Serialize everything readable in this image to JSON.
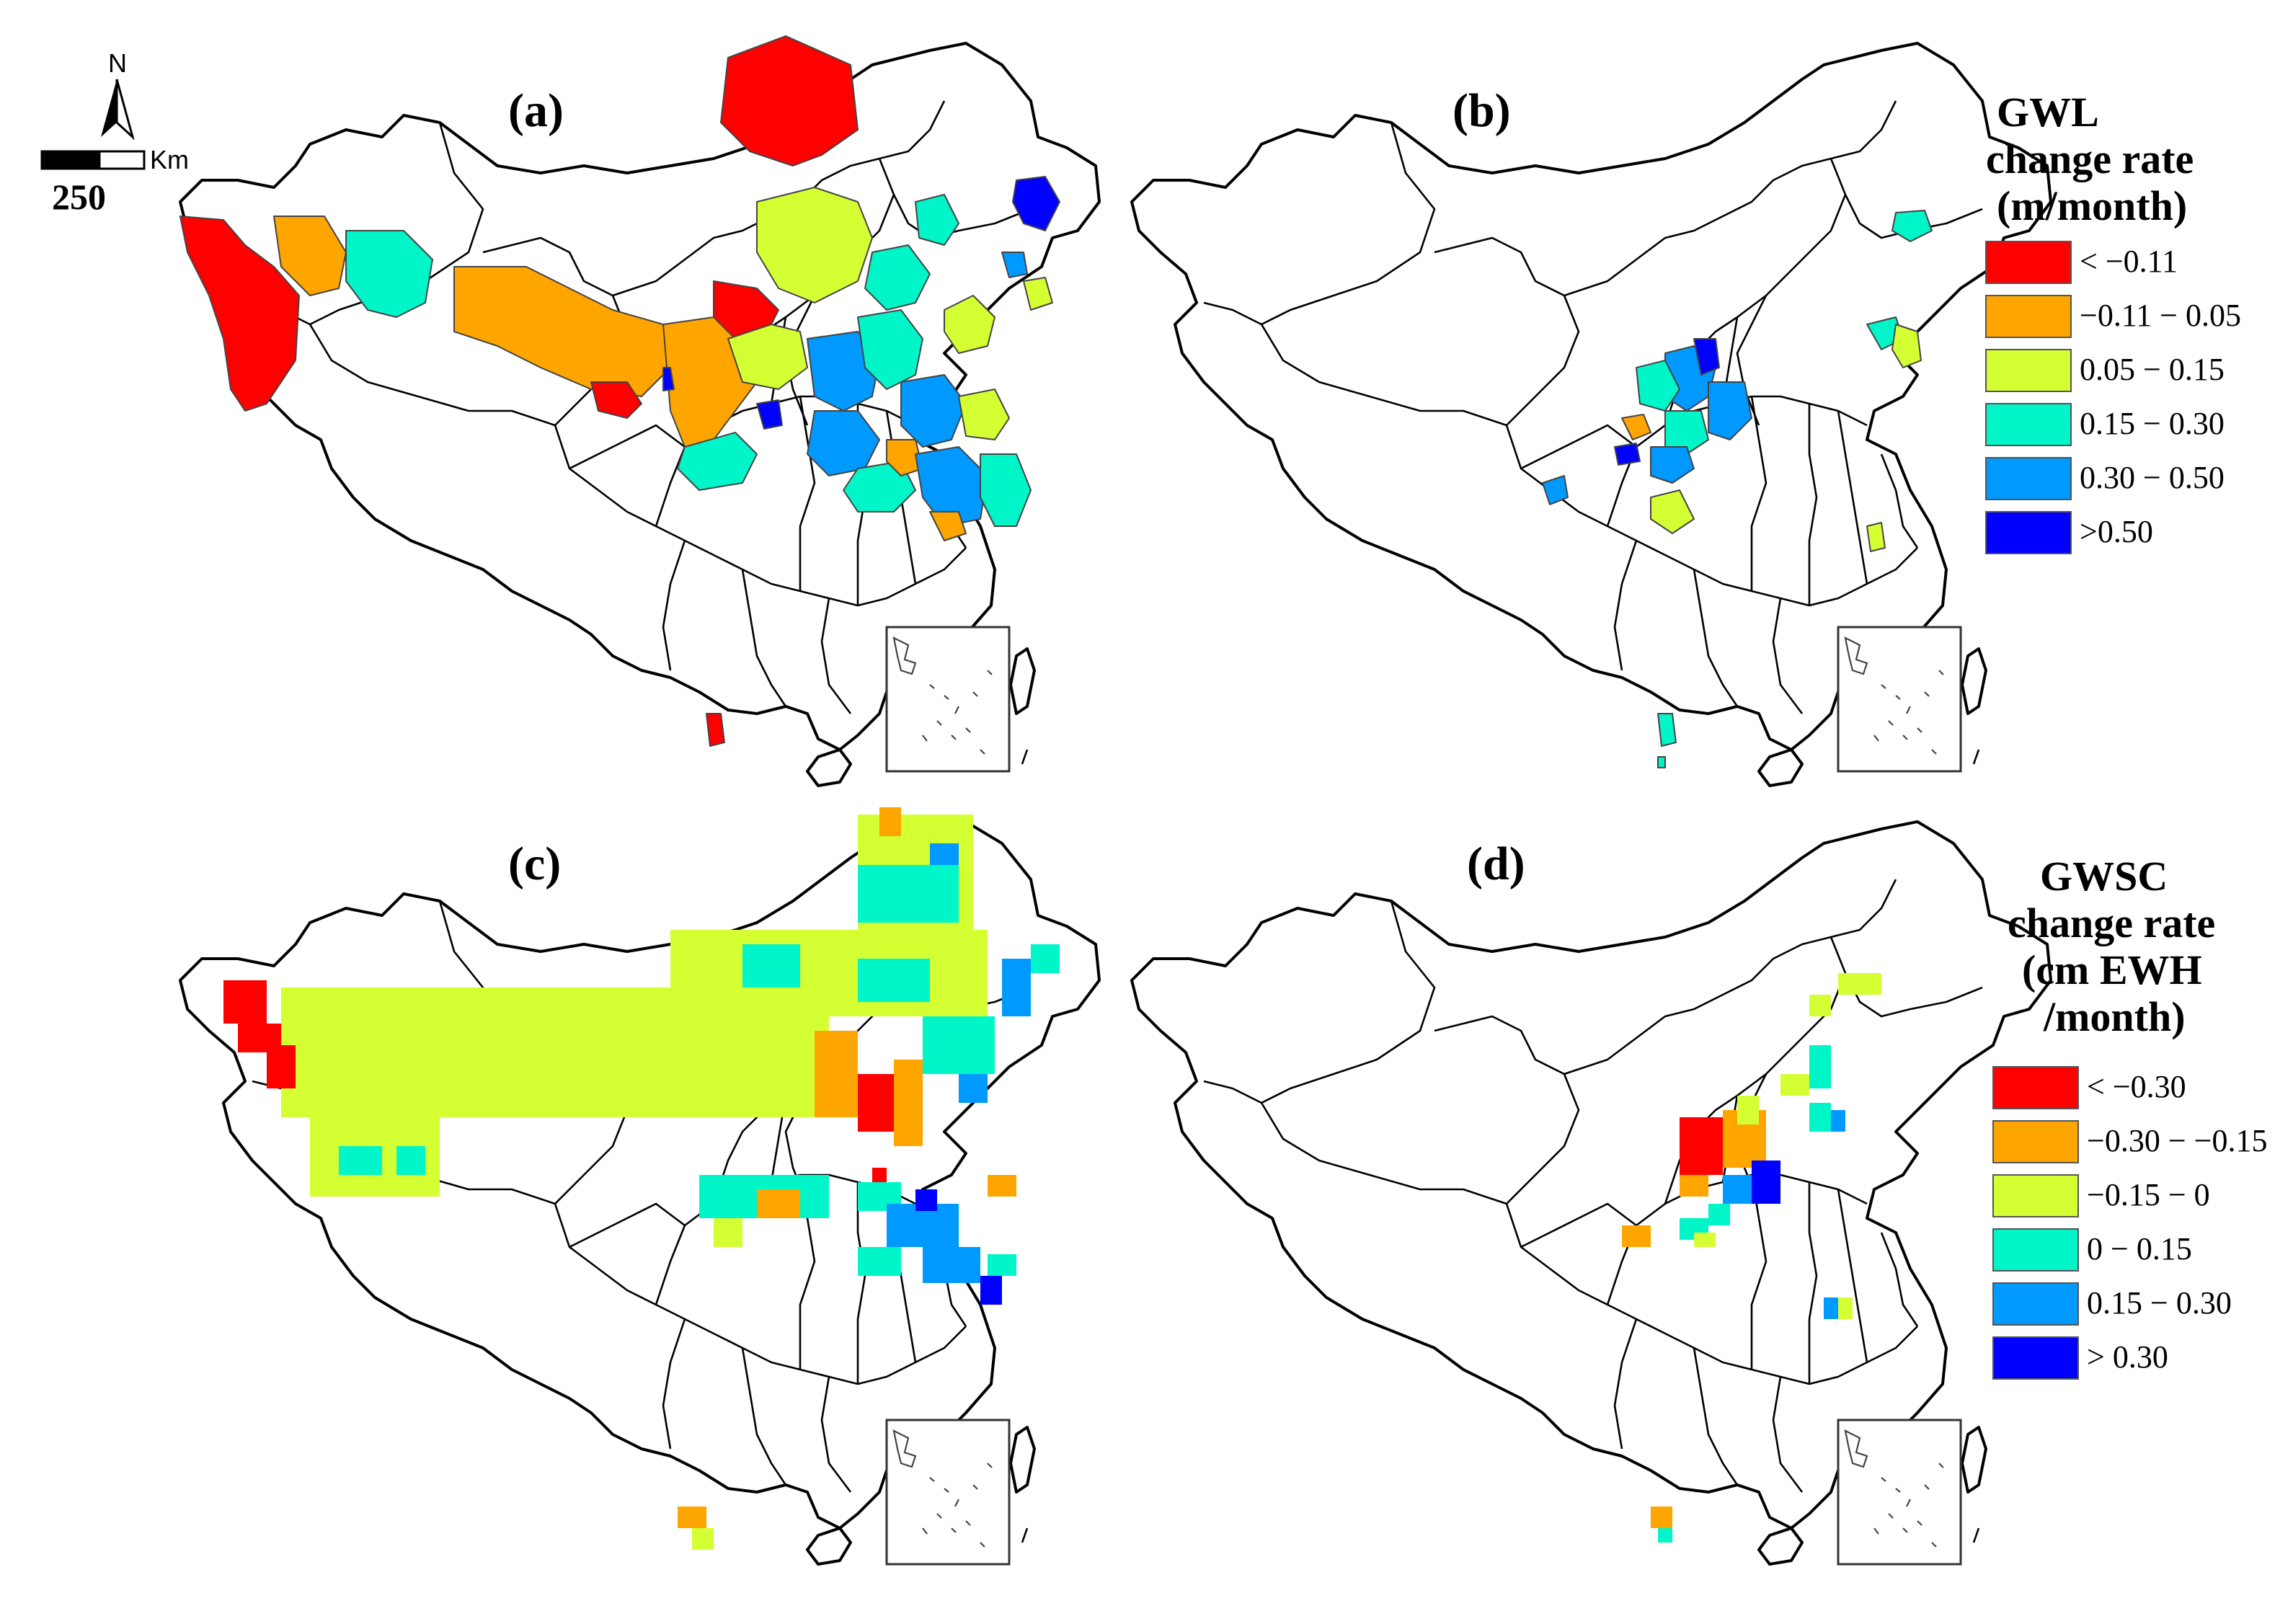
{
  "figure": {
    "panels": [
      {
        "id": "a",
        "label": "(a)"
      },
      {
        "id": "b",
        "label": "(b)"
      },
      {
        "id": "c",
        "label": "(c)"
      },
      {
        "id": "d",
        "label": "(d)"
      }
    ],
    "north_arrow": {
      "label": "N"
    },
    "scale_bar": {
      "unit": "Km",
      "value": "250"
    }
  },
  "legends": {
    "gwl": {
      "title_lines": [
        "GWL",
        "change rate",
        "(m/month)"
      ],
      "items": [
        {
          "label": "< −0.11",
          "color": "#ff0000"
        },
        {
          "label": "−0.11 − 0.05",
          "color": "#ffa500"
        },
        {
          "label": "0.05 − 0.15",
          "color": "#d4ff33"
        },
        {
          "label": "0.15 − 0.30",
          "color": "#00f5c8"
        },
        {
          "label": "0.30 − 0.50",
          "color": "#0099ff"
        },
        {
          "label": ">0.50",
          "color": "#0000ff"
        }
      ]
    },
    "gwsc": {
      "title_lines": [
        "GWSC",
        "change rate",
        "(cm EWH",
        "/month)"
      ],
      "items": [
        {
          "label": "< −0.30",
          "color": "#ff0000"
        },
        {
          "label": "−0.30 − −0.15",
          "color": "#ffa500"
        },
        {
          "label": "−0.15 − 0",
          "color": "#d4ff33"
        },
        {
          "label": "0 − 0.15",
          "color": "#00f5c8"
        },
        {
          "label": "0.15 − 0.30",
          "color": "#0099ff"
        },
        {
          "label": "> 0.30",
          "color": "#0000ff"
        }
      ]
    }
  }
}
